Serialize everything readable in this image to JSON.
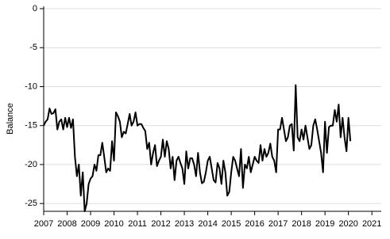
{
  "chart_data": {
    "type": "line",
    "ylabel": "Balance",
    "color": "#000000",
    "grid": true,
    "xlim": [
      2007,
      2021.4
    ],
    "xticks": [
      2007,
      2008,
      2009,
      2010,
      2011,
      2012,
      2013,
      2014,
      2015,
      2016,
      2017,
      2018,
      2019,
      2020,
      2021
    ],
    "ylim": [
      -26,
      0
    ],
    "yticks": [
      0,
      -5,
      -10,
      -15,
      -20,
      -25
    ],
    "x": [
      2007,
      2007.083,
      2007.167,
      2007.25,
      2007.333,
      2007.417,
      2007.5,
      2007.583,
      2007.667,
      2007.75,
      2007.833,
      2007.917,
      2008,
      2008.083,
      2008.167,
      2008.25,
      2008.333,
      2008.417,
      2008.5,
      2008.583,
      2008.667,
      2008.75,
      2008.833,
      2008.917,
      2009,
      2009.083,
      2009.167,
      2009.25,
      2009.333,
      2009.417,
      2009.5,
      2009.583,
      2009.667,
      2009.75,
      2009.833,
      2009.917,
      2010,
      2010.083,
      2010.167,
      2010.25,
      2010.333,
      2010.417,
      2010.5,
      2010.583,
      2010.667,
      2010.75,
      2010.833,
      2010.917,
      2011,
      2011.083,
      2011.167,
      2011.25,
      2011.333,
      2011.417,
      2011.5,
      2011.583,
      2011.667,
      2011.75,
      2011.833,
      2011.917,
      2012,
      2012.083,
      2012.167,
      2012.25,
      2012.333,
      2012.417,
      2012.5,
      2012.583,
      2012.667,
      2012.75,
      2012.833,
      2012.917,
      2013,
      2013.083,
      2013.167,
      2013.25,
      2013.333,
      2013.417,
      2013.5,
      2013.583,
      2013.667,
      2013.75,
      2013.833,
      2013.917,
      2014,
      2014.083,
      2014.167,
      2014.25,
      2014.333,
      2014.417,
      2014.5,
      2014.583,
      2014.667,
      2014.75,
      2014.833,
      2014.917,
      2015,
      2015.083,
      2015.167,
      2015.25,
      2015.333,
      2015.417,
      2015.5,
      2015.583,
      2015.667,
      2015.75,
      2015.833,
      2015.917,
      2016,
      2016.083,
      2016.167,
      2016.25,
      2016.333,
      2016.417,
      2016.5,
      2016.583,
      2016.667,
      2016.75,
      2016.833,
      2016.917,
      2017,
      2017.083,
      2017.167,
      2017.25,
      2017.333,
      2017.417,
      2017.5,
      2017.583,
      2017.667,
      2017.75,
      2017.833,
      2017.917,
      2018,
      2018.083,
      2018.167,
      2018.25,
      2018.333,
      2018.417,
      2018.5,
      2018.583,
      2018.667,
      2018.75,
      2018.833,
      2018.917,
      2019,
      2019.083,
      2019.167,
      2019.25,
      2019.333,
      2019.417,
      2019.5,
      2019.583,
      2019.667,
      2019.75,
      2019.833,
      2019.917,
      2020,
      2020.083
    ],
    "values": [
      -15,
      -14.5,
      -14.2,
      -12.8,
      -13.5,
      -13.4,
      -12.9,
      -15.5,
      -14.5,
      -14.2,
      -15.5,
      -14.0,
      -15.2,
      -14.0,
      -15.3,
      -14.2,
      -19.0,
      -21.5,
      -20.0,
      -24.0,
      -21.0,
      -26.0,
      -25.0,
      -22.5,
      -21.8,
      -21.5,
      -20.0,
      -20.8,
      -18.8,
      -18.8,
      -17.2,
      -19.0,
      -21.0,
      -20.5,
      -20.8,
      -17.0,
      -19.5,
      -13.3,
      -13.8,
      -14.5,
      -16.5,
      -15.8,
      -16.0,
      -14.8,
      -13.5,
      -15.0,
      -14.5,
      -13.3,
      -15.0,
      -14.8,
      -14.8,
      -15.3,
      -15.7,
      -18.0,
      -17.2,
      -20.0,
      -18.5,
      -17.5,
      -20.2,
      -19.5,
      -19.0,
      -16.8,
      -19.0,
      -17.0,
      -18.0,
      -20.5,
      -19.0,
      -22.0,
      -19.5,
      -19.0,
      -19.8,
      -20.5,
      -22.5,
      -18.3,
      -20.5,
      -19.2,
      -19.2,
      -20.0,
      -21.5,
      -18.5,
      -21.0,
      -22.4,
      -22.2,
      -21.0,
      -19.5,
      -19.0,
      -20.5,
      -22.0,
      -22.3,
      -19.8,
      -20.5,
      -22.5,
      -19.5,
      -21.0,
      -24.0,
      -23.5,
      -21.0,
      -19.0,
      -19.5,
      -20.5,
      -21.5,
      -18.0,
      -23.0,
      -20.0,
      -20.5,
      -19.0,
      -21.0,
      -20.0,
      -19.0,
      -19.5,
      -19.8,
      -17.5,
      -19.5,
      -18.0,
      -19.0,
      -18.5,
      -17.3,
      -19.0,
      -19.5,
      -21.0,
      -15.5,
      -15.5,
      -14.0,
      -15.5,
      -17.0,
      -16.5,
      -15.0,
      -14.8,
      -18.2,
      -9.8,
      -16.5,
      -17.0,
      -15.5,
      -16.8,
      -15.0,
      -16.5,
      -18.0,
      -17.5,
      -15.0,
      -14.2,
      -15.5,
      -17.0,
      -18.5,
      -21.0,
      -14.5,
      -18.5,
      -15.2,
      -15.0,
      -15.0,
      -13.0,
      -14.5,
      -12.3,
      -16.5,
      -14.0,
      -16.5,
      -18.3,
      -14.0,
      -17.0
    ]
  }
}
